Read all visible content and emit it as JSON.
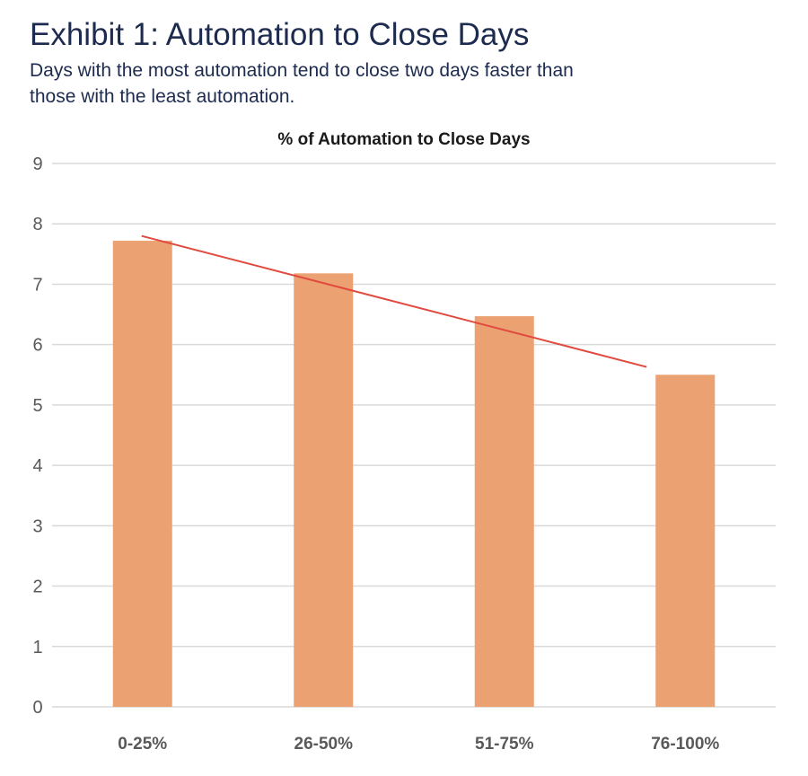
{
  "header": {
    "title": "Exhibit 1: Automation to Close Days",
    "subtitle": "Days with the most automation tend to close two days faster than those with the least automation."
  },
  "colors": {
    "title": "#1d2b4f",
    "bar": "#eba172",
    "trendline": "#e04a3f",
    "gridline": "#d9d9d9",
    "tick_text": "#595959"
  },
  "chart_data": {
    "type": "bar",
    "title": "% of Automation to Close Days",
    "categories": [
      "0-25%",
      "26-50%",
      "51-75%",
      "76-100%"
    ],
    "values": [
      7.72,
      7.18,
      6.47,
      5.5
    ],
    "xlabel": "",
    "ylabel": "",
    "ylim": [
      0,
      9
    ],
    "yticks": [
      0,
      1,
      2,
      3,
      4,
      5,
      6,
      7,
      8,
      9
    ],
    "grid": true,
    "legend": "none",
    "trendline": {
      "type": "linear",
      "start_value": 7.8,
      "end_value": 5.63
    }
  }
}
